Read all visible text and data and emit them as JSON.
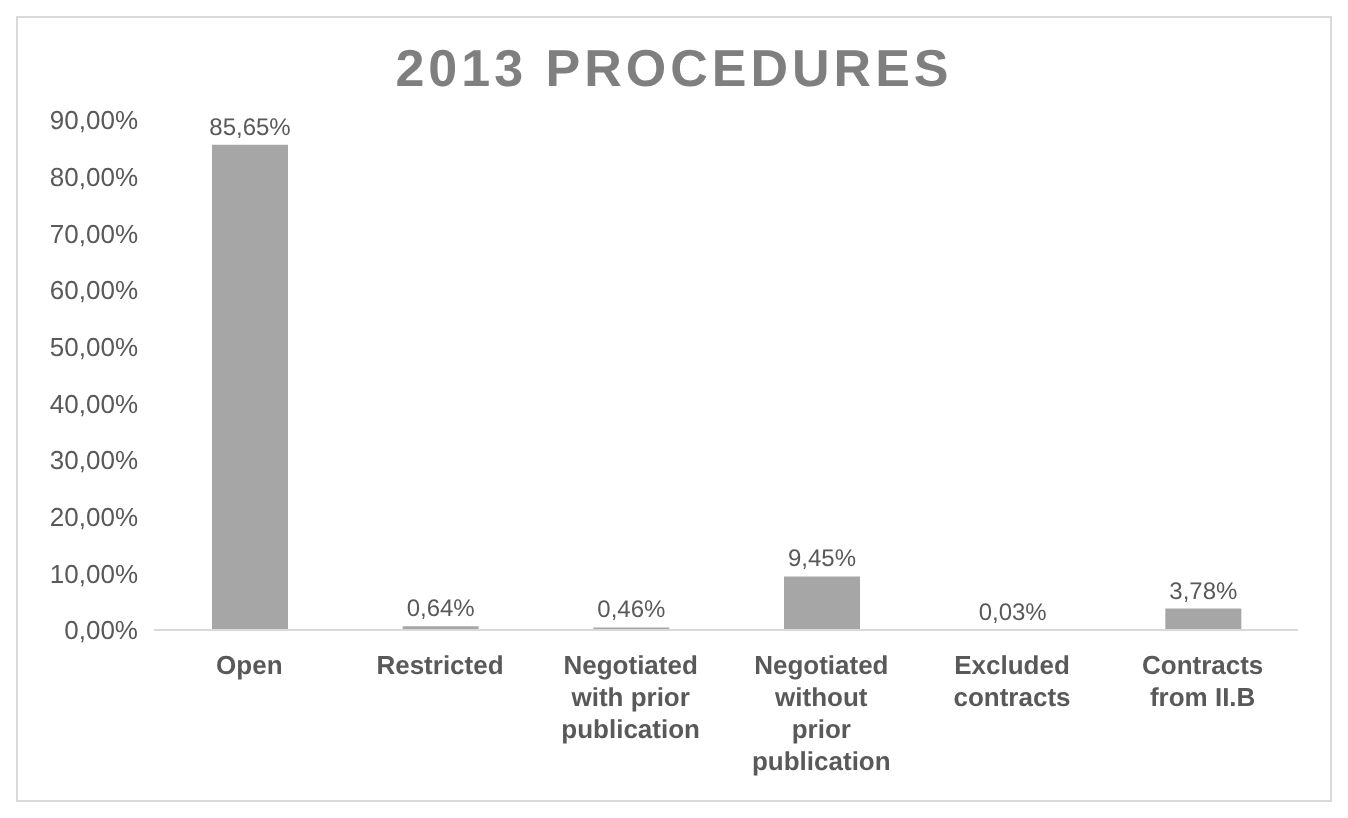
{
  "chart_data": {
    "type": "bar",
    "title": "2013 PROCEDURES",
    "categories": [
      "Open",
      "Restricted",
      "Negotiated with prior publication",
      "Negotiated without prior publication",
      "Excluded contracts",
      "Contracts from II.B"
    ],
    "values": [
      85.65,
      0.64,
      0.46,
      9.45,
      0.03,
      3.78
    ],
    "value_labels": [
      "85,65%",
      "0,64%",
      "0,46%",
      "9,45%",
      "0,03%",
      "3,78%"
    ],
    "color": "#a6a6a6",
    "ylim": [
      0,
      90
    ],
    "yticks": [
      {
        "value": 0,
        "label": "0,00%"
      },
      {
        "value": 10,
        "label": "10,00%"
      },
      {
        "value": 20,
        "label": "20,00%"
      },
      {
        "value": 30,
        "label": "30,00%"
      },
      {
        "value": 40,
        "label": "40,00%"
      },
      {
        "value": 50,
        "label": "50,00%"
      },
      {
        "value": 60,
        "label": "60,00%"
      },
      {
        "value": 70,
        "label": "70,00%"
      },
      {
        "value": 80,
        "label": "80,00%"
      },
      {
        "value": 90,
        "label": "90,00%"
      }
    ],
    "grid": false
  }
}
